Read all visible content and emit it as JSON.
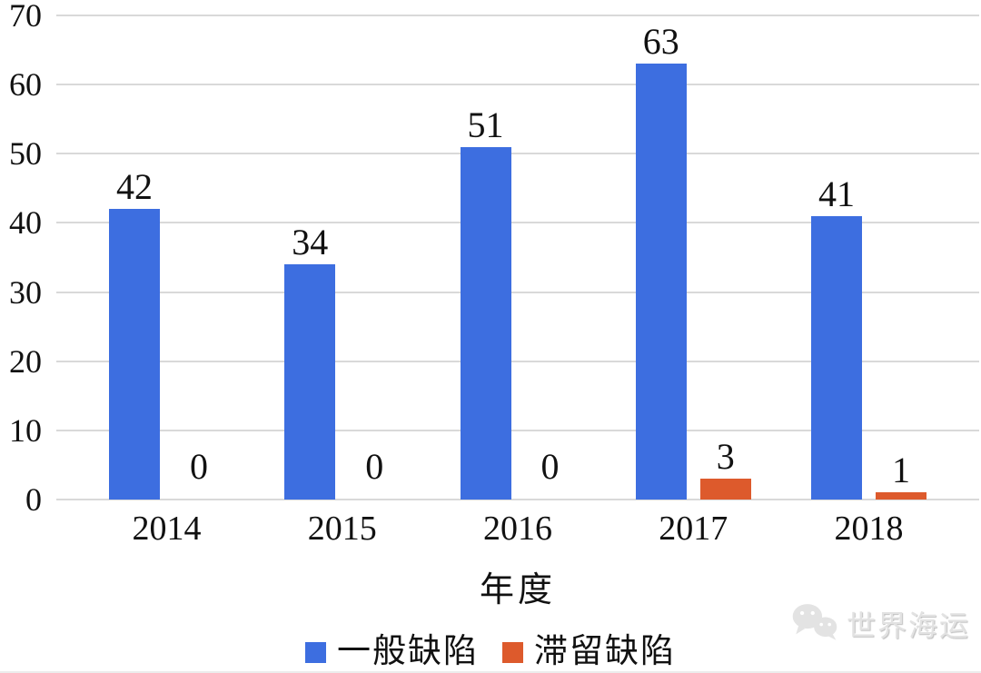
{
  "chart_data": {
    "type": "bar",
    "categories": [
      "2014",
      "2015",
      "2016",
      "2017",
      "2018"
    ],
    "series": [
      {
        "name": "一般缺陷",
        "color": "#3d6ee0",
        "values": [
          42,
          34,
          51,
          63,
          41
        ]
      },
      {
        "name": "滞留缺陷",
        "color": "#dd5a2c",
        "values": [
          0,
          0,
          0,
          3,
          1
        ]
      }
    ],
    "title": "",
    "xlabel": "年度",
    "ylabel": "",
    "ylim": [
      0,
      70
    ],
    "yticks": [
      0,
      10,
      20,
      30,
      40,
      50,
      60,
      70
    ],
    "grid": true,
    "legend_position": "bottom",
    "data_labels": true
  },
  "watermark": {
    "text": "世界海运",
    "icon": "wechat-icon"
  },
  "colors": {
    "gridline": "#d9d9d9",
    "label_text": "#111111",
    "watermark_text": "#e2e2e2"
  }
}
